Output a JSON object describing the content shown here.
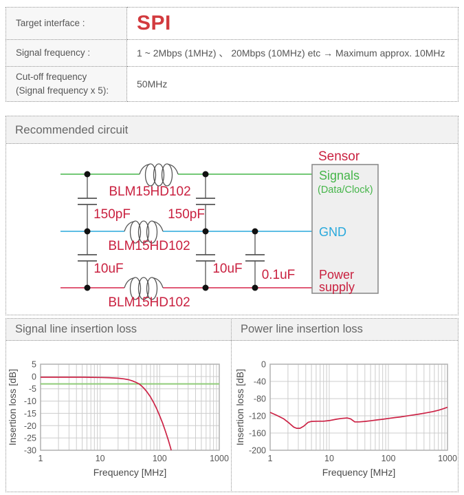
{
  "colors": {
    "accent-red": "#d23a3e",
    "circuit-red": "#c9203f",
    "power-red": "#d62349",
    "signal-green": "#45b549",
    "gnd-blue": "#29a9dc",
    "cutoff-green": "#8fcc78",
    "chart-red": "#cc2245"
  },
  "spec_table": {
    "rows": [
      {
        "label": "Target interface :",
        "value": "SPI"
      },
      {
        "label": "Signal frequency :",
        "value": "1 ~ 2Mbps (1MHz) 、 20Mbps (10MHz)  etc → Maximum approx. 10MHz"
      },
      {
        "label": "Cut-off frequency (Signal frequency x 5):",
        "value": "50MHz"
      }
    ]
  },
  "circuit": {
    "title": "Recommended circuit",
    "ferrite": "BLM15HD102",
    "caps": [
      "150pF",
      "150pF",
      "10uF",
      "10uF",
      "0.1uF"
    ],
    "sensor": {
      "title": "Sensor",
      "signals": "Signals",
      "signals_sub": "(Data/Clock)",
      "gnd": "GND",
      "power_line1": "Power",
      "power_line2": "supply"
    }
  },
  "chart_data": [
    {
      "type": "line",
      "title": "Signal line insertion loss",
      "xlabel": "Frequency [MHz]",
      "ylabel": "Insertion loss [dB]",
      "x_scale": "log",
      "grid": true,
      "legend": "none",
      "xlim": [
        1,
        1000
      ],
      "ylim": [
        -30,
        5
      ],
      "x_ticks": [
        1,
        10,
        100,
        1000
      ],
      "y_ticks": [
        5,
        0,
        -5,
        -10,
        -15,
        -20,
        -25,
        -30
      ],
      "series": [
        {
          "name": "cutoff-reference",
          "color": "#8fcc78",
          "width": 2,
          "points": [
            [
              1,
              -3
            ],
            [
              1000,
              -3
            ]
          ]
        },
        {
          "name": "insertion-loss",
          "color": "#cc2245",
          "width": 1.7,
          "points": [
            [
              1,
              -0.3
            ],
            [
              2,
              -0.3
            ],
            [
              3,
              -0.3
            ],
            [
              5,
              -0.3
            ],
            [
              7,
              -0.35
            ],
            [
              10,
              -0.4
            ],
            [
              14,
              -0.5
            ],
            [
              20,
              -0.7
            ],
            [
              25,
              -0.95
            ],
            [
              30,
              -1.3
            ],
            [
              35,
              -1.8
            ],
            [
              40,
              -2.4
            ],
            [
              45,
              -3.0
            ],
            [
              50,
              -3.9
            ],
            [
              55,
              -4.9
            ],
            [
              60,
              -6
            ],
            [
              70,
              -8.3
            ],
            [
              80,
              -10.8
            ],
            [
              90,
              -13.4
            ],
            [
              100,
              -16
            ],
            [
              112,
              -19
            ],
            [
              125,
              -22.3
            ],
            [
              140,
              -26
            ],
            [
              150,
              -28.5
            ],
            [
              156,
              -30
            ]
          ]
        }
      ]
    },
    {
      "type": "line",
      "title": "Power line insertion loss",
      "xlabel": "Frequency [MHz]",
      "ylabel": "Insertion loss [dB]",
      "x_scale": "log",
      "grid": true,
      "legend": "none",
      "xlim": [
        1,
        1000
      ],
      "ylim": [
        -200,
        0
      ],
      "x_ticks": [
        1,
        10,
        100,
        1000
      ],
      "y_ticks": [
        0,
        -40,
        -80,
        -120,
        -160,
        -200
      ],
      "series": [
        {
          "name": "insertion-loss",
          "color": "#cc2245",
          "width": 1.7,
          "points": [
            [
              1,
              -112
            ],
            [
              1.3,
              -119
            ],
            [
              1.7,
              -127
            ],
            [
              2.1,
              -137
            ],
            [
              2.5,
              -146
            ],
            [
              2.8,
              -149
            ],
            [
              3.2,
              -149
            ],
            [
              3.7,
              -144
            ],
            [
              4.4,
              -135
            ],
            [
              5,
              -133
            ],
            [
              6.5,
              -132.5
            ],
            [
              8,
              -132.5
            ],
            [
              10,
              -131
            ],
            [
              13,
              -128
            ],
            [
              16,
              -126
            ],
            [
              20,
              -125
            ],
            [
              23,
              -127
            ],
            [
              27,
              -134
            ],
            [
              32,
              -134
            ],
            [
              40,
              -133
            ],
            [
              50,
              -131.5
            ],
            [
              65,
              -129.5
            ],
            [
              80,
              -128
            ],
            [
              100,
              -126
            ],
            [
              130,
              -124
            ],
            [
              160,
              -122.5
            ],
            [
              200,
              -120.5
            ],
            [
              260,
              -118
            ],
            [
              330,
              -116
            ],
            [
              420,
              -113.5
            ],
            [
              550,
              -110.5
            ],
            [
              700,
              -107
            ],
            [
              850,
              -103.5
            ],
            [
              1000,
              -100
            ]
          ]
        }
      ]
    }
  ]
}
